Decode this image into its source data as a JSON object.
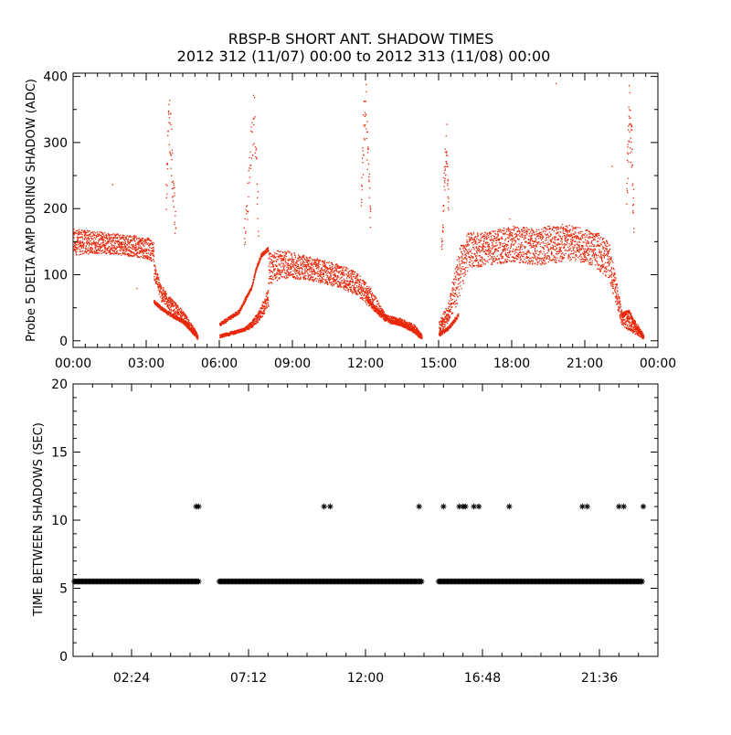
{
  "figure": {
    "title_line1": "RBSP-B SHORT ANT. SHADOW TIMES",
    "title_line2": "2012 312 (11/07) 00:00 to 2012 313 (11/08) 00:00"
  },
  "colors": {
    "top_points": "#e8280a",
    "bottom_points": "#000000",
    "axes": "#000000"
  },
  "chart_data": [
    {
      "type": "scatter",
      "ylabel": "Probe 5 DELTA AMP DURING SHADOW (ADC)",
      "xlabel": "",
      "xlim": [
        0,
        24
      ],
      "ylim": [
        -10,
        405
      ],
      "x_unit": "hours",
      "xticks": [
        0,
        3,
        6,
        9,
        12,
        15,
        18,
        21,
        24
      ],
      "xtick_labels": [
        "00:00",
        "03:00",
        "06:00",
        "09:00",
        "12:00",
        "15:00",
        "18:00",
        "21:00",
        "00:00"
      ],
      "yticks": [
        0,
        100,
        200,
        300,
        400
      ],
      "ytick_labels": [
        "0",
        "100",
        "200",
        "300",
        "400"
      ],
      "grid": false,
      "marker": "dot",
      "series": [
        {
          "color": "#e8280a",
          "bands": [
            {
              "x": [
                0.0,
                0.5,
                1.0,
                1.5,
                2.0,
                2.5,
                3.0,
                3.3
              ],
              "low": [
                130,
                132,
                133,
                132,
                130,
                128,
                125,
                120
              ],
              "high": [
                170,
                168,
                166,
                165,
                162,
                160,
                158,
                150
              ]
            },
            {
              "x": [
                3.3,
                3.6,
                4.0,
                4.4,
                4.8,
                5.1
              ],
              "low": [
                95,
                60,
                45,
                30,
                15,
                5
              ],
              "high": [
                120,
                85,
                65,
                50,
                30,
                10
              ]
            },
            {
              "x": [
                6.0,
                6.5,
                7.0,
                7.3,
                7.6,
                8.0
              ],
              "low": [
                5,
                10,
                15,
                20,
                30,
                50
              ],
              "high": [
                10,
                15,
                20,
                30,
                45,
                80
              ]
            },
            {
              "x": [
                8.0,
                8.5,
                9.0,
                10.0,
                11.0,
                11.6,
                12.2,
                12.8,
                13.4,
                14.0,
                14.3
              ],
              "low": [
                85,
                95,
                95,
                90,
                80,
                70,
                50,
                30,
                25,
                15,
                5
              ],
              "high": [
                135,
                138,
                135,
                125,
                115,
                105,
                80,
                40,
                35,
                25,
                10
              ]
            },
            {
              "x": [
                15.0,
                15.4,
                15.8,
                16.2,
                17.0,
                18.0,
                19.0,
                20.0,
                21.0,
                21.5,
                22.0,
                22.5,
                23.0,
                23.4
              ],
              "low": [
                10,
                30,
                60,
                110,
                115,
                120,
                115,
                120,
                120,
                110,
                90,
                25,
                10,
                5
              ],
              "high": [
                30,
                60,
                140,
                165,
                165,
                175,
                170,
                180,
                170,
                165,
                150,
                45,
                35,
                10
              ]
            },
            {
              "x": [
                0.0,
                6.0
              ],
              "low": [
                0,
                0
              ],
              "high": [
                0,
                0
              ]
            }
          ],
          "bands_used": [
            0,
            1,
            2,
            3,
            4
          ],
          "curves": [
            {
              "x": [
                3.3,
                3.6,
                4.0,
                4.5,
                5.0,
                5.1
              ],
              "y": [
                60,
                50,
                40,
                30,
                10,
                5
              ]
            },
            {
              "x": [
                6.0,
                6.4,
                6.8,
                7.0,
                7.3,
                7.5,
                7.7,
                8.0
              ],
              "y": [
                25,
                35,
                45,
                60,
                80,
                110,
                130,
                140
              ]
            },
            {
              "x": [
                12.0,
                12.5,
                13.0,
                13.5,
                14.0,
                14.3
              ],
              "y": [
                65,
                45,
                30,
                25,
                15,
                5
              ]
            },
            {
              "x": [
                15.0,
                15.4,
                15.8
              ],
              "y": [
                10,
                20,
                40
              ]
            },
            {
              "x": [
                22.5,
                22.8,
                23.1,
                23.4
              ],
              "y": [
                40,
                45,
                20,
                5
              ]
            }
          ],
          "spikes": [
            {
              "x": [
                3.8,
                3.9,
                4.0,
                4.1,
                4.2
              ],
              "y": [
                250,
                380,
                340,
                250,
                190
              ]
            },
            {
              "x": [
                7.0,
                7.2,
                7.4,
                7.5,
                7.6
              ],
              "y": [
                180,
                270,
                400,
                300,
                200
              ]
            },
            {
              "x": [
                11.8,
                11.9,
                12.0,
                12.1,
                12.2
              ],
              "y": [
                230,
                360,
                400,
                300,
                200
              ]
            },
            {
              "x": [
                15.1,
                15.2,
                15.3,
                15.4
              ],
              "y": [
                150,
                260,
                360,
                220
              ]
            },
            {
              "x": [
                22.7,
                22.8,
                22.9,
                23.0
              ],
              "y": [
                250,
                390,
                340,
                200
              ]
            }
          ],
          "outliers": [
            {
              "x": 1.6,
              "y": 237
            },
            {
              "x": 2.6,
              "y": 80
            },
            {
              "x": 19.8,
              "y": 390
            },
            {
              "x": 22.1,
              "y": 265
            },
            {
              "x": 17.9,
              "y": 185
            }
          ]
        }
      ]
    },
    {
      "type": "scatter",
      "ylabel": "TIME BETWEEN SHADOWS (SEC)",
      "xlabel": "",
      "xlim": [
        0,
        24
      ],
      "ylim": [
        0,
        20
      ],
      "x_unit": "hours",
      "xticks": [
        2.4,
        7.2,
        12.0,
        16.8,
        21.6
      ],
      "xtick_labels": [
        "02:24",
        "07:12",
        "12:00",
        "16:48",
        "21:36"
      ],
      "yticks": [
        0,
        5,
        10,
        15,
        20
      ],
      "ytick_labels": [
        "0",
        "5",
        "10",
        "15",
        "20"
      ],
      "grid": false,
      "marker": "asterisk",
      "series": [
        {
          "color": "#000000",
          "segments_y": 5.5,
          "segments_x": [
            [
              0.05,
              5.15
            ],
            [
              6.0,
              14.35
            ],
            [
              15.0,
              23.4
            ]
          ],
          "points_11": [
            5.05,
            5.15,
            10.3,
            10.55,
            14.2,
            15.2,
            15.85,
            16.0,
            16.1,
            16.45,
            16.65,
            17.9,
            20.9,
            21.1,
            22.4,
            22.6,
            23.4
          ]
        }
      ]
    }
  ]
}
